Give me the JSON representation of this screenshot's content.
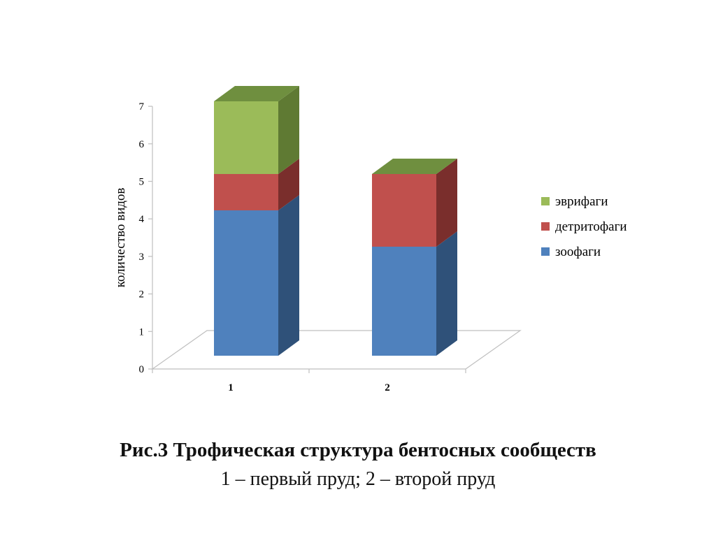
{
  "chart_data": {
    "type": "bar",
    "stacked": true,
    "three_d": true,
    "categories": [
      "1",
      "2"
    ],
    "series": [
      {
        "name": "зоофаги",
        "values": [
          4,
          3
        ],
        "color": "#4F81BD",
        "side": "#2F5179",
        "top": "#6A95CB"
      },
      {
        "name": "детритофаги",
        "values": [
          1,
          2
        ],
        "color": "#C0504D",
        "side": "#7A2E2C",
        "top": "#C96A67"
      },
      {
        "name": "эврифаги",
        "values": [
          2,
          0
        ],
        "color": "#9BBB59",
        "side": "#5F7A33",
        "top": "#6F8F3F"
      }
    ],
    "ylabel": "количество видов",
    "xlabel": "",
    "ylim": [
      0,
      7
    ],
    "yticks": [
      0,
      1,
      2,
      3,
      4,
      5,
      6,
      7
    ],
    "legend_position": "right",
    "grid": false
  },
  "caption": {
    "title": "Рис.3 Трофическая структура бентосных сообществ",
    "subtitle": "1 – первый пруд; 2 – второй пруд"
  }
}
